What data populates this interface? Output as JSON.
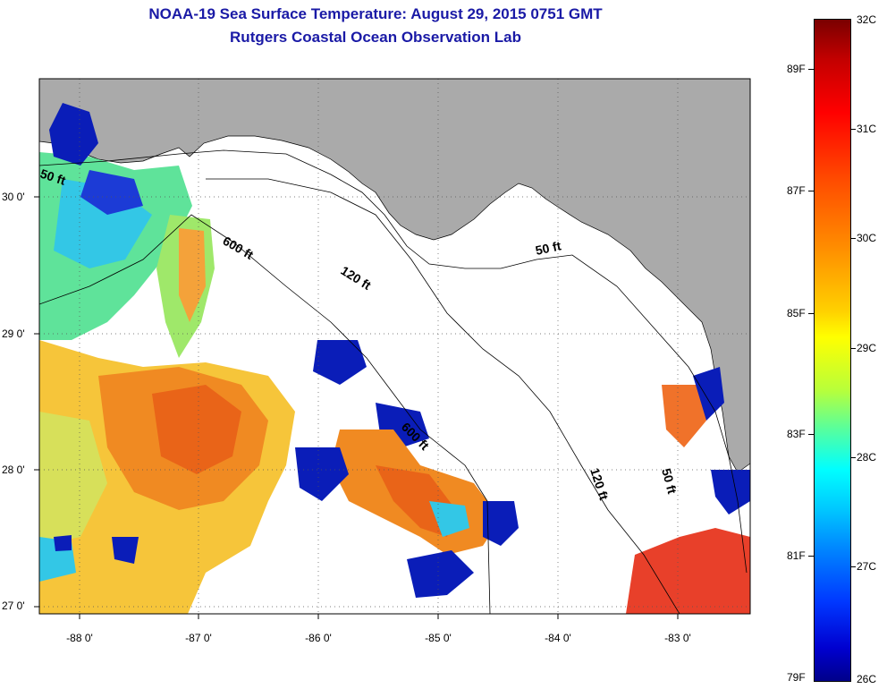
{
  "header": {
    "title": "NOAA-19 Sea Surface Temperature:  August 29, 2015 0751 GMT",
    "subtitle": "Rutgers Coastal Ocean Observation Lab"
  },
  "axes": {
    "y_labels": [
      "30 0'",
      "29 0'",
      "28 0'",
      "27 0'"
    ],
    "x_labels": [
      "-88 0'",
      "-87 0'",
      "-86 0'",
      "-85 0'",
      "-84 0'",
      "-83 0'"
    ]
  },
  "isobaths": {
    "label_50ft_a": "50 ft",
    "label_600ft": "600 ft",
    "label_120ft_a": "120 ft",
    "label_50ft_b": "50 ft",
    "label_600ft_b": "600 ft",
    "label_120ft_b": "120 ft",
    "label_50ft_c": "50 ft"
  },
  "colorbar": {
    "fahrenheit": [
      "89F",
      "87F",
      "85F",
      "83F",
      "81F",
      "79F"
    ],
    "celsius": [
      "32C",
      "31C",
      "30C",
      "29C",
      "28C",
      "27C",
      "26C"
    ]
  },
  "colors": {
    "land": "#aaaaaa",
    "title": "#1a1aa6"
  }
}
